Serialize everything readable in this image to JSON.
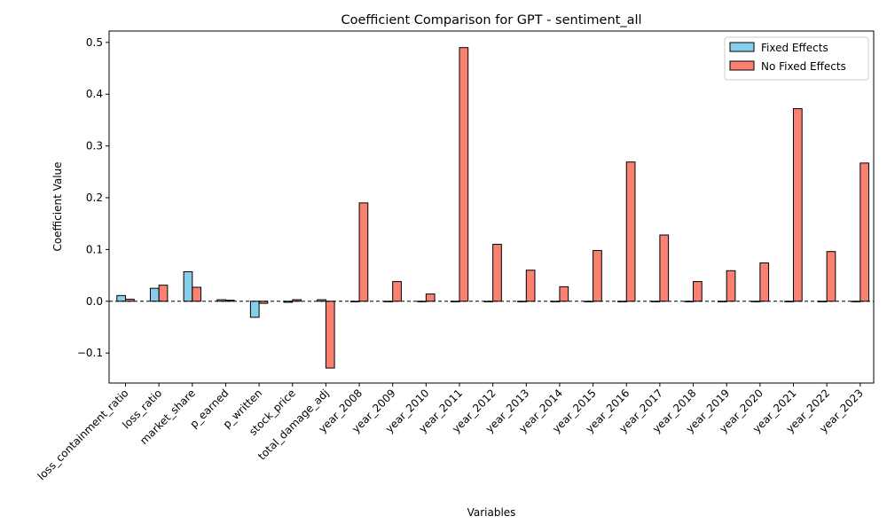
{
  "chart_data": {
    "type": "bar",
    "title": "Coefficient Comparison for GPT - sentiment_all",
    "xlabel": "Variables",
    "ylabel": "Coefficient Value",
    "ylim": [
      -0.158,
      0.522
    ],
    "yticks": [
      -0.1,
      0.0,
      0.1,
      0.2,
      0.3,
      0.4,
      0.5
    ],
    "ytick_labels": [
      "−0.1",
      "0.0",
      "0.1",
      "0.2",
      "0.3",
      "0.4",
      "0.5"
    ],
    "legend_position": "top-right",
    "grid": false,
    "zero_line": true,
    "categories": [
      "loss_containment_ratio",
      "loss_ratio",
      "market_share",
      "p_earned",
      "p_written",
      "stock_price",
      "total_damage_adj",
      "year_2008",
      "year_2009",
      "year_2010",
      "year_2011",
      "year_2012",
      "year_2013",
      "year_2014",
      "year_2015",
      "year_2016",
      "year_2017",
      "year_2018",
      "year_2019",
      "year_2020",
      "year_2021",
      "year_2022",
      "year_2023"
    ],
    "series": [
      {
        "name": "Fixed Effects",
        "color": "#87CEEB",
        "values": [
          0.011,
          0.025,
          0.057,
          0.003,
          -0.031,
          -0.002,
          0.003,
          0,
          0,
          0,
          0,
          0,
          0,
          0,
          0,
          0,
          0,
          0,
          0,
          0,
          0,
          0,
          0
        ]
      },
      {
        "name": "No Fixed Effects",
        "color": "#FA8072",
        "values": [
          0.004,
          0.031,
          0.027,
          0.002,
          -0.004,
          0.003,
          -0.129,
          0.19,
          0.038,
          0.014,
          0.49,
          0.11,
          0.06,
          0.028,
          0.098,
          0.269,
          0.128,
          0.038,
          0.059,
          0.074,
          0.372,
          0.096,
          0.267
        ]
      }
    ]
  }
}
